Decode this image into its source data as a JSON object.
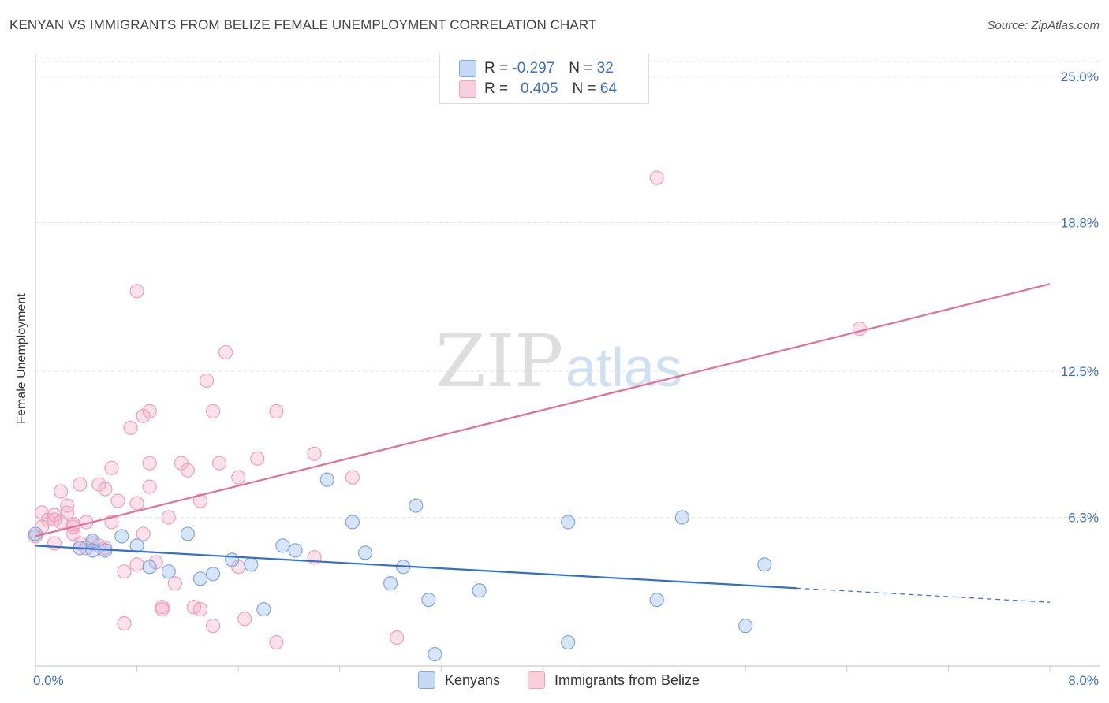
{
  "title": "KENYAN VS IMMIGRANTS FROM BELIZE FEMALE UNEMPLOYMENT CORRELATION CHART",
  "source": "Source: ZipAtlas.com",
  "watermark": {
    "zip": "ZIP",
    "atlas": "atlas"
  },
  "legend_stats": [
    {
      "r_label": "R =",
      "r_value": "-0.297",
      "n_label": "N =",
      "n_value": "32"
    },
    {
      "r_label": "R =",
      "r_value": "0.405",
      "n_label": "N =",
      "n_value": "64"
    }
  ],
  "chart_data": {
    "type": "scatter",
    "title": "KENYAN VS IMMIGRANTS FROM BELIZE FEMALE UNEMPLOYMENT CORRELATION CHART",
    "xlabel": "",
    "ylabel": "Female Unemployment",
    "xlim": [
      0.0,
      8.0
    ],
    "ylim": [
      0.0,
      25.0
    ],
    "x_tick_labels": [
      "0.0%",
      "8.0%"
    ],
    "y_ticks": [
      6.3,
      12.5,
      18.8,
      25.0
    ],
    "y_tick_labels": [
      "6.3%",
      "12.5%",
      "18.8%",
      "25.0%"
    ],
    "grid": true,
    "legend_position": "bottom-center",
    "colors": {
      "Kenyans": "#6f9fe0",
      "Immigrants from Belize": "#ef8fb0",
      "Kenyans_line": "#2f6fd0",
      "Belize_line": "#e36e96",
      "tick_label": "#3b6fc8"
    },
    "series": [
      {
        "name": "Kenyans",
        "r": -0.297,
        "n": 32,
        "trend": {
          "x0": 0.0,
          "y0": 5.1,
          "x1": 6.0,
          "y1": 3.3,
          "dash_to_x": 8.0,
          "dash_to_y": 2.7
        },
        "points": [
          [
            0.0,
            5.6
          ],
          [
            0.35,
            5.0
          ],
          [
            0.45,
            5.3
          ],
          [
            0.45,
            4.9
          ],
          [
            0.55,
            4.9
          ],
          [
            0.68,
            5.5
          ],
          [
            0.8,
            5.1
          ],
          [
            0.9,
            4.2
          ],
          [
            1.05,
            4.0
          ],
          [
            1.2,
            5.6
          ],
          [
            1.3,
            3.7
          ],
          [
            1.4,
            3.9
          ],
          [
            1.55,
            4.5
          ],
          [
            1.7,
            4.3
          ],
          [
            1.8,
            2.4
          ],
          [
            1.95,
            5.1
          ],
          [
            2.05,
            4.9
          ],
          [
            2.3,
            7.9
          ],
          [
            2.5,
            6.1
          ],
          [
            2.6,
            4.8
          ],
          [
            2.8,
            3.5
          ],
          [
            2.9,
            4.2
          ],
          [
            3.0,
            6.8
          ],
          [
            3.1,
            2.8
          ],
          [
            3.15,
            0.5
          ],
          [
            3.5,
            3.2
          ],
          [
            4.2,
            1.0
          ],
          [
            4.2,
            6.1
          ],
          [
            4.9,
            2.8
          ],
          [
            5.1,
            6.3
          ],
          [
            5.6,
            1.7
          ],
          [
            5.75,
            4.3
          ]
        ]
      },
      {
        "name": "Immigrants from Belize",
        "r": 0.405,
        "n": 64,
        "trend": {
          "x0": 0.0,
          "y0": 5.5,
          "x1": 8.0,
          "y1": 16.2
        },
        "points": [
          [
            0.0,
            5.5
          ],
          [
            0.05,
            6.5
          ],
          [
            0.1,
            6.2
          ],
          [
            0.15,
            6.2
          ],
          [
            0.15,
            5.2
          ],
          [
            0.2,
            7.4
          ],
          [
            0.25,
            6.5
          ],
          [
            0.25,
            6.8
          ],
          [
            0.3,
            5.6
          ],
          [
            0.3,
            5.9
          ],
          [
            0.35,
            7.7
          ],
          [
            0.35,
            5.2
          ],
          [
            0.4,
            5.0
          ],
          [
            0.4,
            6.1
          ],
          [
            0.45,
            5.2
          ],
          [
            0.5,
            7.7
          ],
          [
            0.5,
            5.1
          ],
          [
            0.55,
            7.5
          ],
          [
            0.55,
            5.0
          ],
          [
            0.6,
            6.1
          ],
          [
            0.6,
            8.4
          ],
          [
            0.65,
            7.0
          ],
          [
            0.7,
            4.0
          ],
          [
            0.7,
            1.8
          ],
          [
            0.75,
            10.1
          ],
          [
            0.8,
            4.3
          ],
          [
            0.8,
            15.9
          ],
          [
            0.8,
            6.9
          ],
          [
            0.85,
            5.6
          ],
          [
            0.85,
            10.6
          ],
          [
            0.9,
            10.8
          ],
          [
            0.9,
            7.6
          ],
          [
            0.9,
            8.6
          ],
          [
            0.95,
            4.4
          ],
          [
            1.0,
            2.5
          ],
          [
            1.0,
            2.4
          ],
          [
            1.05,
            6.3
          ],
          [
            1.1,
            3.5
          ],
          [
            1.15,
            8.6
          ],
          [
            1.2,
            8.3
          ],
          [
            1.25,
            2.5
          ],
          [
            1.3,
            2.4
          ],
          [
            1.3,
            7.0
          ],
          [
            1.35,
            12.1
          ],
          [
            1.4,
            10.8
          ],
          [
            1.4,
            1.7
          ],
          [
            1.45,
            8.6
          ],
          [
            1.5,
            13.3
          ],
          [
            1.6,
            4.2
          ],
          [
            1.6,
            8.0
          ],
          [
            1.65,
            2.0
          ],
          [
            1.75,
            8.8
          ],
          [
            1.9,
            10.8
          ],
          [
            1.9,
            1.0
          ],
          [
            2.2,
            9.0
          ],
          [
            2.2,
            4.6
          ],
          [
            2.5,
            8.0
          ],
          [
            2.85,
            1.2
          ],
          [
            4.9,
            20.7
          ],
          [
            6.5,
            14.3
          ],
          [
            0.3,
            6.0
          ],
          [
            0.15,
            6.4
          ],
          [
            0.05,
            5.9
          ],
          [
            0.2,
            6.1
          ]
        ]
      }
    ]
  },
  "bottom_legend": {
    "series1": "Kenyans",
    "series2": "Immigrants from Belize"
  }
}
